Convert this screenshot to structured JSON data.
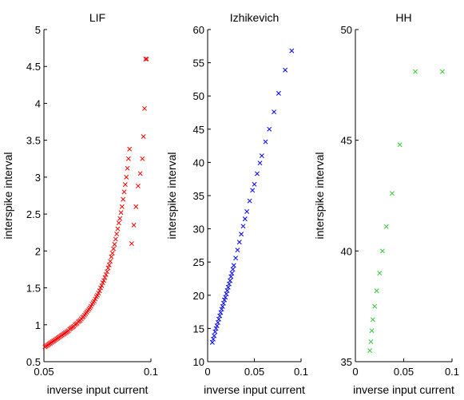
{
  "chart_data": [
    {
      "type": "scatter",
      "title": "LIF",
      "xlabel": "inverse input current",
      "ylabel": "interspike interval",
      "xlim": [
        0.05,
        0.1
      ],
      "ylim": [
        0.5,
        5
      ],
      "xticks": [
        0.05,
        0.1
      ],
      "xtick_labels": [
        "0.05",
        "0.1"
      ],
      "yticks": [
        0.5,
        1,
        1.5,
        2,
        2.5,
        3,
        3.5,
        4,
        4.5,
        5
      ],
      "ytick_labels": [
        "0.5",
        "1",
        "1.5",
        "2",
        "2.5",
        "3",
        "3.5",
        "4",
        "4.5",
        "5"
      ],
      "marker": "x",
      "color": "#ff0000",
      "grid": false,
      "series": [
        {
          "x": [
            0.0505,
            0.051,
            0.0515,
            0.052,
            0.0525,
            0.053,
            0.0535,
            0.054,
            0.0545,
            0.055,
            0.0555,
            0.056,
            0.0565,
            0.057,
            0.0575,
            0.058,
            0.0585,
            0.059,
            0.0595,
            0.06,
            0.0605,
            0.061,
            0.0615,
            0.062,
            0.0625,
            0.063,
            0.0635,
            0.064,
            0.0645,
            0.065,
            0.0655,
            0.066,
            0.0665,
            0.067,
            0.0675,
            0.068,
            0.0685,
            0.069,
            0.0695,
            0.07,
            0.0705,
            0.071,
            0.0715,
            0.072,
            0.0725,
            0.073,
            0.0735,
            0.074,
            0.0745,
            0.075,
            0.0755,
            0.076,
            0.0765,
            0.077,
            0.0775,
            0.078,
            0.0785,
            0.079,
            0.0795,
            0.08,
            0.0805,
            0.081,
            0.0815,
            0.082,
            0.0825,
            0.083,
            0.0835,
            0.084,
            0.0845,
            0.085,
            0.0855,
            0.086,
            0.0865,
            0.087,
            0.0875,
            0.088,
            0.0885,
            0.089,
            0.0895,
            0.09,
            0.091,
            0.092,
            0.093,
            0.094,
            0.095,
            0.096,
            0.0965,
            0.097,
            0.0975,
            0.098
          ],
          "y": [
            0.7,
            0.71,
            0.72,
            0.73,
            0.74,
            0.75,
            0.76,
            0.77,
            0.78,
            0.79,
            0.8,
            0.81,
            0.82,
            0.83,
            0.84,
            0.85,
            0.86,
            0.87,
            0.88,
            0.89,
            0.9,
            0.91,
            0.92,
            0.94,
            0.95,
            0.96,
            0.97,
            0.98,
            1.0,
            1.01,
            1.02,
            1.04,
            1.05,
            1.06,
            1.08,
            1.1,
            1.11,
            1.13,
            1.15,
            1.17,
            1.19,
            1.21,
            1.23,
            1.25,
            1.28,
            1.3,
            1.32,
            1.35,
            1.38,
            1.4,
            1.43,
            1.46,
            1.5,
            1.53,
            1.57,
            1.6,
            1.64,
            1.68,
            1.72,
            1.77,
            1.81,
            1.86,
            1.92,
            1.97,
            2.03,
            2.09,
            2.16,
            2.23,
            2.3,
            2.38,
            2.44,
            2.52,
            2.6,
            2.7,
            2.8,
            2.9,
            3.0,
            3.12,
            3.25,
            3.38,
            2.1,
            2.35,
            2.6,
            2.88,
            3.05,
            3.25,
            3.55,
            3.93,
            4.6,
            4.6
          ]
        }
      ]
    },
    {
      "type": "scatter",
      "title": "Izhikevich",
      "xlabel": "inverse input current",
      "ylabel": "interspike interval",
      "xlim": [
        0,
        0.1
      ],
      "ylim": [
        10,
        60
      ],
      "xticks": [
        0,
        0.05,
        0.1
      ],
      "xtick_labels": [
        "0",
        "0.05",
        "0.1"
      ],
      "yticks": [
        10,
        15,
        20,
        25,
        30,
        35,
        40,
        45,
        50,
        55,
        60
      ],
      "ytick_labels": [
        "10",
        "15",
        "20",
        "25",
        "30",
        "35",
        "40",
        "45",
        "50",
        "55",
        "60"
      ],
      "marker": "x",
      "color": "#0000ff",
      "grid": false,
      "series": [
        {
          "x": [
            0.005,
            0.006,
            0.007,
            0.008,
            0.009,
            0.01,
            0.011,
            0.012,
            0.013,
            0.014,
            0.015,
            0.016,
            0.017,
            0.018,
            0.019,
            0.02,
            0.021,
            0.022,
            0.023,
            0.024,
            0.025,
            0.026,
            0.027,
            0.028,
            0.03,
            0.032,
            0.034,
            0.036,
            0.038,
            0.04,
            0.042,
            0.045,
            0.048,
            0.05,
            0.053,
            0.056,
            0.058,
            0.062,
            0.066,
            0.071,
            0.076,
            0.083,
            0.09
          ],
          "y": [
            12.9,
            13.4,
            13.9,
            14.5,
            15.0,
            15.4,
            15.9,
            16.4,
            16.9,
            17.4,
            17.9,
            18.3,
            18.8,
            19.3,
            19.7,
            20.2,
            20.7,
            21.2,
            21.7,
            22.2,
            22.8,
            23.3,
            23.9,
            24.5,
            25.6,
            26.8,
            28.0,
            29.2,
            30.4,
            31.5,
            32.6,
            34.2,
            35.8,
            36.7,
            38.3,
            39.9,
            41.0,
            43.1,
            45.0,
            47.6,
            50.4,
            53.9,
            56.8
          ]
        }
      ]
    },
    {
      "type": "scatter",
      "title": "HH",
      "xlabel": "inverse input current",
      "ylabel": "interspike interval",
      "xlim": [
        0,
        0.1
      ],
      "ylim": [
        35,
        50
      ],
      "xticks": [
        0,
        0.05,
        0.1
      ],
      "xtick_labels": [
        "0",
        "0.05",
        "0.1"
      ],
      "yticks": [
        35,
        40,
        45,
        50
      ],
      "ytick_labels": [
        "35",
        "40",
        "45",
        "50"
      ],
      "marker": "x",
      "color": "#33cc33",
      "grid": false,
      "series": [
        {
          "x": [
            0.015,
            0.016,
            0.017,
            0.018,
            0.02,
            0.022,
            0.025,
            0.028,
            0.032,
            0.038,
            0.046,
            0.062,
            0.09
          ],
          "y": [
            35.5,
            35.9,
            36.4,
            36.9,
            37.5,
            38.2,
            39.0,
            40.0,
            41.1,
            42.6,
            44.8,
            48.1,
            48.1
          ]
        }
      ]
    }
  ]
}
